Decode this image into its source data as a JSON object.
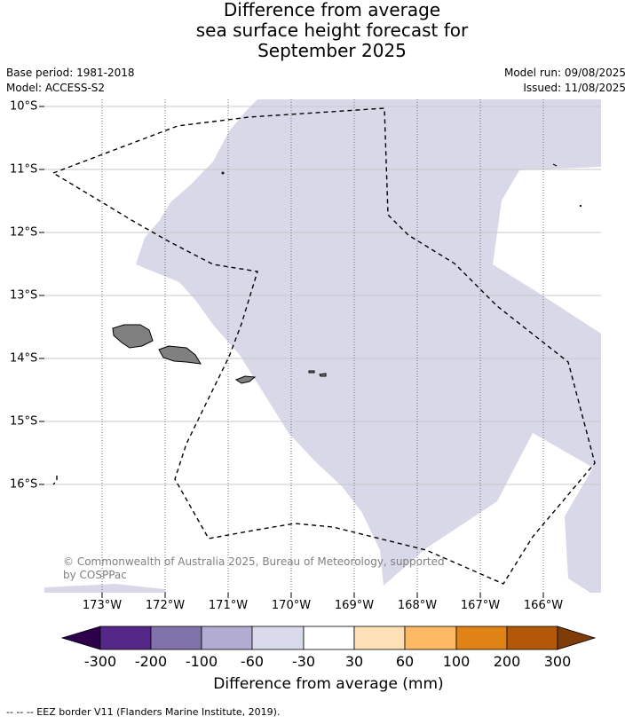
{
  "title": {
    "line1": "Difference from average",
    "line2": "sea surface height forecast for",
    "line3": "September 2025"
  },
  "meta": {
    "base_period": "Base period: 1981-2018",
    "model": "Model: ACCESS-S2",
    "model_run": "Model run: 09/08/2025",
    "issued": "Issued: 11/08/2025"
  },
  "map": {
    "lat_labels": [
      "10°S",
      "11°S",
      "12°S",
      "13°S",
      "14°S",
      "15°S",
      "16°S"
    ],
    "lon_labels": [
      "173°W",
      "172°W",
      "171°W",
      "170°W",
      "169°W",
      "168°W",
      "167°W",
      "166°W"
    ],
    "copyright_line1": "© Commonwealth of Australia 2025, Bureau of Meteorology, supported",
    "copyright_line2": "by COSPPac",
    "anomaly_fill_color": "#d8d8e8",
    "land_color": "#808080"
  },
  "colorbar": {
    "ticks": [
      "-300",
      "-200",
      "-100",
      "-60",
      "-30",
      "30",
      "60",
      "100",
      "200",
      "300"
    ],
    "colors": [
      "#2d004b",
      "#542788",
      "#8073ac",
      "#b2abd2",
      "#d8daeb",
      "#ffffff",
      "#fee0b6",
      "#fdb863",
      "#e08214",
      "#b35806",
      "#7f3b08"
    ],
    "title": "Difference from average (mm)"
  },
  "footnote": "--  --  -- EEZ border V11 (Flanders Marine Institute, 2019)."
}
